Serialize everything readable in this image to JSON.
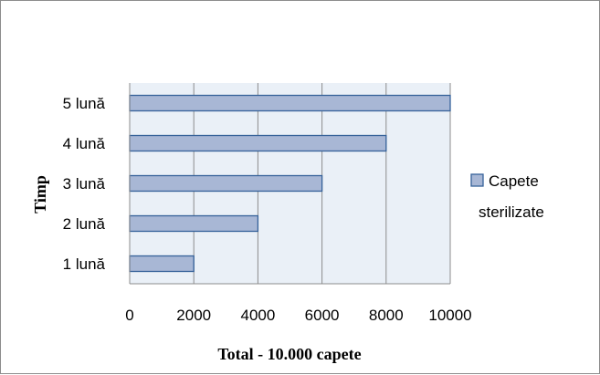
{
  "chart_data": {
    "type": "bar",
    "orientation": "horizontal",
    "categories": [
      "1 lună",
      "2 lună",
      "3 lună",
      "4 lună",
      "5 lună"
    ],
    "series": [
      {
        "name": "Capete sterilizate",
        "values": [
          2000,
          4000,
          6000,
          8000,
          10000
        ]
      }
    ],
    "title": "",
    "xlabel": "Total - 10.000 capete",
    "ylabel": "Timp",
    "xlim": [
      0,
      10000
    ],
    "xticks": [
      "0",
      "2000",
      "4000",
      "6000",
      "8000",
      "10000"
    ],
    "grid": true,
    "legend_position": "right",
    "legend_lines": [
      "Capete",
      "sterilizate"
    ],
    "colors": {
      "bar_fill": "#a8b7d5",
      "bar_stroke": "#36629a",
      "plot_background": "#eaf0f7",
      "gridline": "#8c8c8c"
    }
  }
}
